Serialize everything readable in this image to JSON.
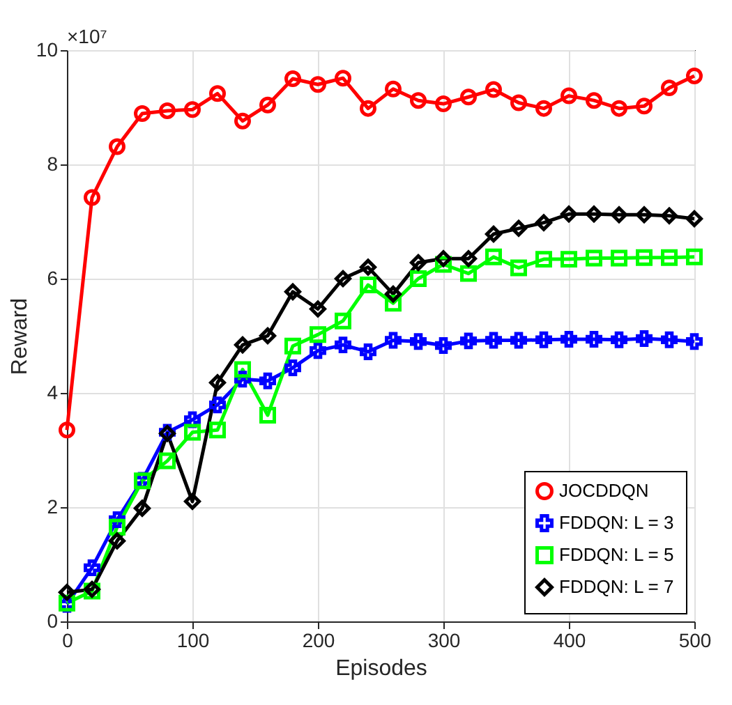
{
  "chart_data": {
    "type": "line",
    "xlabel": "Episodes",
    "ylabel": "Reward",
    "annotations": [
      "×10⁷"
    ],
    "x": [
      0,
      20,
      40,
      60,
      80,
      100,
      120,
      140,
      160,
      180,
      200,
      220,
      240,
      260,
      280,
      300,
      320,
      340,
      360,
      380,
      400,
      420,
      440,
      460,
      480,
      500
    ],
    "xlim": [
      0,
      500
    ],
    "xticks": [
      0,
      100,
      200,
      300,
      400,
      500
    ],
    "ylim": [
      0,
      10
    ],
    "yticks": [
      0,
      2,
      4,
      6,
      8,
      10
    ],
    "grid": true,
    "legend": "bottom right",
    "line_style": "solid",
    "series": [
      {
        "name": "JOCDDQN",
        "color": "#ff0000",
        "marker": "circle",
        "values": [
          3.35,
          7.42,
          8.31,
          8.89,
          8.94,
          8.96,
          9.24,
          8.76,
          9.04,
          9.5,
          9.4,
          9.51,
          8.98,
          9.32,
          9.12,
          9.06,
          9.18,
          9.31,
          9.08,
          8.98,
          9.2,
          9.12,
          8.98,
          9.02,
          9.34,
          9.55
        ]
      },
      {
        "name": "FDDQN: L = 3",
        "color": "#0000ff",
        "marker": "cross",
        "values": [
          0.3,
          0.94,
          1.78,
          2.47,
          3.31,
          3.53,
          3.79,
          4.24,
          4.21,
          4.44,
          4.74,
          4.84,
          4.72,
          4.92,
          4.9,
          4.83,
          4.91,
          4.92,
          4.92,
          4.93,
          4.94,
          4.94,
          4.93,
          4.95,
          4.93,
          4.9
        ]
      },
      {
        "name": "FDDQN: L = 5",
        "color": "#00ff00",
        "marker": "square",
        "values": [
          0.32,
          0.53,
          1.65,
          2.46,
          2.81,
          3.31,
          3.35,
          4.41,
          3.61,
          4.82,
          5.02,
          5.26,
          5.89,
          5.57,
          6.0,
          6.25,
          6.09,
          6.38,
          6.19,
          6.34,
          6.34,
          6.36,
          6.36,
          6.37,
          6.37,
          6.38
        ]
      },
      {
        "name": "FDDQN: L = 7",
        "color": "#000000",
        "marker": "diamond",
        "values": [
          0.51,
          0.56,
          1.41,
          1.98,
          3.29,
          2.1,
          4.18,
          4.84,
          5.0,
          5.77,
          5.47,
          6.0,
          6.2,
          5.73,
          6.28,
          6.35,
          6.35,
          6.78,
          6.88,
          6.98,
          7.13,
          7.13,
          7.12,
          7.12,
          7.1,
          7.05
        ]
      }
    ]
  }
}
